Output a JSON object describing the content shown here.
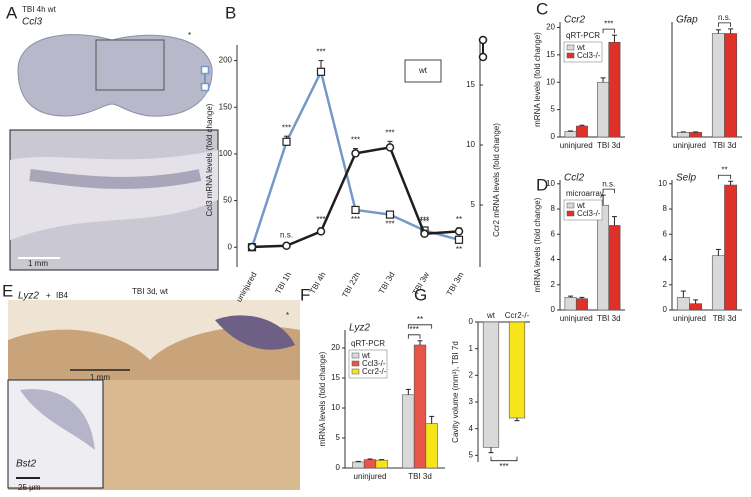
{
  "figure": {
    "panel_a": {
      "label": "A",
      "title": "TBI 4h wt",
      "gene": "Ccl3",
      "marker": "*",
      "scale_bar": "1 mm"
    },
    "panel_e": {
      "label": "E",
      "stain_1": "Lyz2",
      "plus": "+",
      "stain_2": "IB4",
      "title": "TBI 3d, wt",
      "marker": "*",
      "scale_bar": "1 mm",
      "inset_gene": "Bst2",
      "scale_bar_2": "25 μm"
    }
  },
  "chart_data": [
    {
      "type": "line",
      "panel": "B",
      "legend_title": "wt",
      "categories": [
        "uninjured",
        "TBI 1h",
        "TBI 4h",
        "TBI 22h",
        "TBI 3d",
        "TBI 3w",
        "TBI 3m"
      ],
      "ylabel": "Ccl3 mRNA levels (fold change)",
      "y2label": "Ccr2 mRNA levels (fold change)",
      "ylim": [
        -19,
        206
      ],
      "yticks": [
        0,
        50,
        100,
        150,
        200
      ],
      "y2lim": [
        0,
        17.5
      ],
      "y2ticks": [
        5,
        10,
        15
      ],
      "series": [
        {
          "color": "#7398c9",
          "marker": "square",
          "values": [
            0,
            113,
            188,
            40,
            35,
            18,
            8
          ],
          "errors": [
            2,
            6,
            12,
            3,
            3,
            2,
            2
          ],
          "annotations": [
            null,
            "***",
            "***",
            "***",
            "***",
            "***",
            "**"
          ]
        },
        {
          "color": "#1e1e1e",
          "marker": "circle",
          "axis": "y2",
          "values": [
            1.5,
            1.6,
            2.8,
            9.3,
            9.8,
            2.6,
            2.8
          ],
          "errors": [
            0.2,
            0.2,
            0.3,
            0.4,
            0.5,
            0.3,
            0.3
          ],
          "annotations": [
            null,
            "n.s.",
            "***",
            "***",
            "***",
            "***",
            "**"
          ]
        }
      ]
    },
    {
      "type": "bar",
      "panel": "C",
      "title": "Ccr2",
      "method": "qRT-PCR",
      "legend": true,
      "ylabel": "mRNA levels (fold change)",
      "categories": [
        "uninjured",
        "TBI 3d"
      ],
      "ylim": [
        0,
        21
      ],
      "yticks": [
        0,
        5,
        10,
        15,
        20
      ],
      "series": [
        {
          "name": "wt",
          "color": "#d9d9d9",
          "values": [
            1,
            10
          ],
          "errors": [
            0.1,
            0.8
          ]
        },
        {
          "name": "Ccl3-/-",
          "color": "#e0302a",
          "values": [
            2,
            17.3
          ],
          "errors": [
            0.15,
            1.3
          ]
        }
      ],
      "comparisons": [
        {
          "category": 1,
          "series": [
            0,
            1
          ],
          "label": "***"
        }
      ]
    },
    {
      "type": "bar",
      "title": "Gfap",
      "categories": [
        "uninjured",
        "TBI 3d"
      ],
      "ylim": [
        0,
        25
      ],
      "series": [
        {
          "color": "#d9d9d9",
          "values": [
            1,
            22.5
          ],
          "errors": [
            0.1,
            0.8
          ]
        },
        {
          "color": "#e0302a",
          "values": [
            1,
            22.5
          ],
          "errors": [
            0.1,
            1
          ]
        }
      ],
      "comparisons": [
        {
          "category": 1,
          "series": [
            0,
            1
          ],
          "label": "n.s."
        }
      ]
    },
    {
      "type": "bar",
      "panel": "D",
      "title": "Ccl2",
      "method": "microarray",
      "legend": true,
      "ylabel": "mRNA levels (fold change)",
      "categories": [
        "uninjured",
        "TBI 3d"
      ],
      "ylim": [
        0,
        10.3
      ],
      "yticks": [
        0,
        2,
        4,
        6,
        8,
        10
      ],
      "series": [
        {
          "name": "wt",
          "color": "#d9d9d9",
          "values": [
            1,
            8.3
          ],
          "errors": [
            0.1,
            0.8
          ]
        },
        {
          "name": "Ccl3-/-",
          "color": "#e0302a",
          "values": [
            0.9,
            6.7
          ],
          "errors": [
            0.1,
            0.7
          ]
        }
      ],
      "comparisons": [
        {
          "category": 1,
          "series": [
            0,
            1
          ],
          "label": "n.s."
        }
      ]
    },
    {
      "type": "bar",
      "title": "Selp",
      "categories": [
        "uninjured",
        "TBI 3d"
      ],
      "ylim": [
        0,
        10.3
      ],
      "yticks": [
        0,
        2,
        4,
        6,
        8,
        10
      ],
      "series": [
        {
          "color": "#d9d9d9",
          "values": [
            1,
            4.3
          ],
          "errors": [
            0.5,
            0.5
          ]
        },
        {
          "color": "#e0302a",
          "values": [
            0.5,
            9.9
          ],
          "errors": [
            0.3,
            0.3
          ]
        }
      ],
      "comparisons": [
        {
          "category": 1,
          "series": [
            0,
            1
          ],
          "label": "**"
        }
      ]
    },
    {
      "type": "bar",
      "panel": "F",
      "title": "Lyz2",
      "method": "qRT-PCR",
      "legend": true,
      "ylabel": "mRNA levels (fold change)",
      "categories": [
        "uninjured",
        "TBI 3d"
      ],
      "ylim": [
        0,
        23
      ],
      "yticks": [
        0,
        5,
        10,
        15,
        20
      ],
      "series": [
        {
          "name": "wt",
          "color": "#d9d9d9",
          "values": [
            1,
            12.2
          ],
          "errors": [
            0.1,
            0.9
          ]
        },
        {
          "name": "Ccl3-/-",
          "color": "#e8564a",
          "values": [
            1.4,
            20.5
          ],
          "errors": [
            0.1,
            0.7
          ]
        },
        {
          "name": "Ccr2-/-",
          "color": "#f7e51b",
          "values": [
            1.3,
            7.4
          ],
          "errors": [
            0.1,
            1.2
          ]
        }
      ],
      "comparisons": [
        {
          "category": 1,
          "series": [
            0,
            1
          ],
          "label": "***"
        },
        {
          "category": 1,
          "series": [
            0,
            2
          ],
          "label": "**"
        }
      ]
    },
    {
      "type": "bar",
      "panel": "G",
      "invert": true,
      "ylabel": "Cavity volume (mm³), TBI 7d",
      "categories": [
        "wt",
        "Ccr2-/-"
      ],
      "ylim": [
        0,
        5.25
      ],
      "yticks": [
        0,
        1,
        2,
        3,
        4,
        5
      ],
      "series": [
        {
          "colors": [
            "#d9d9d9",
            "#f7e51b"
          ],
          "values": [
            4.7,
            3.6
          ],
          "errors": [
            0.2,
            0.1
          ]
        }
      ],
      "comparisons": [
        {
          "categories": [
            0,
            1
          ],
          "label": "***"
        }
      ]
    }
  ]
}
